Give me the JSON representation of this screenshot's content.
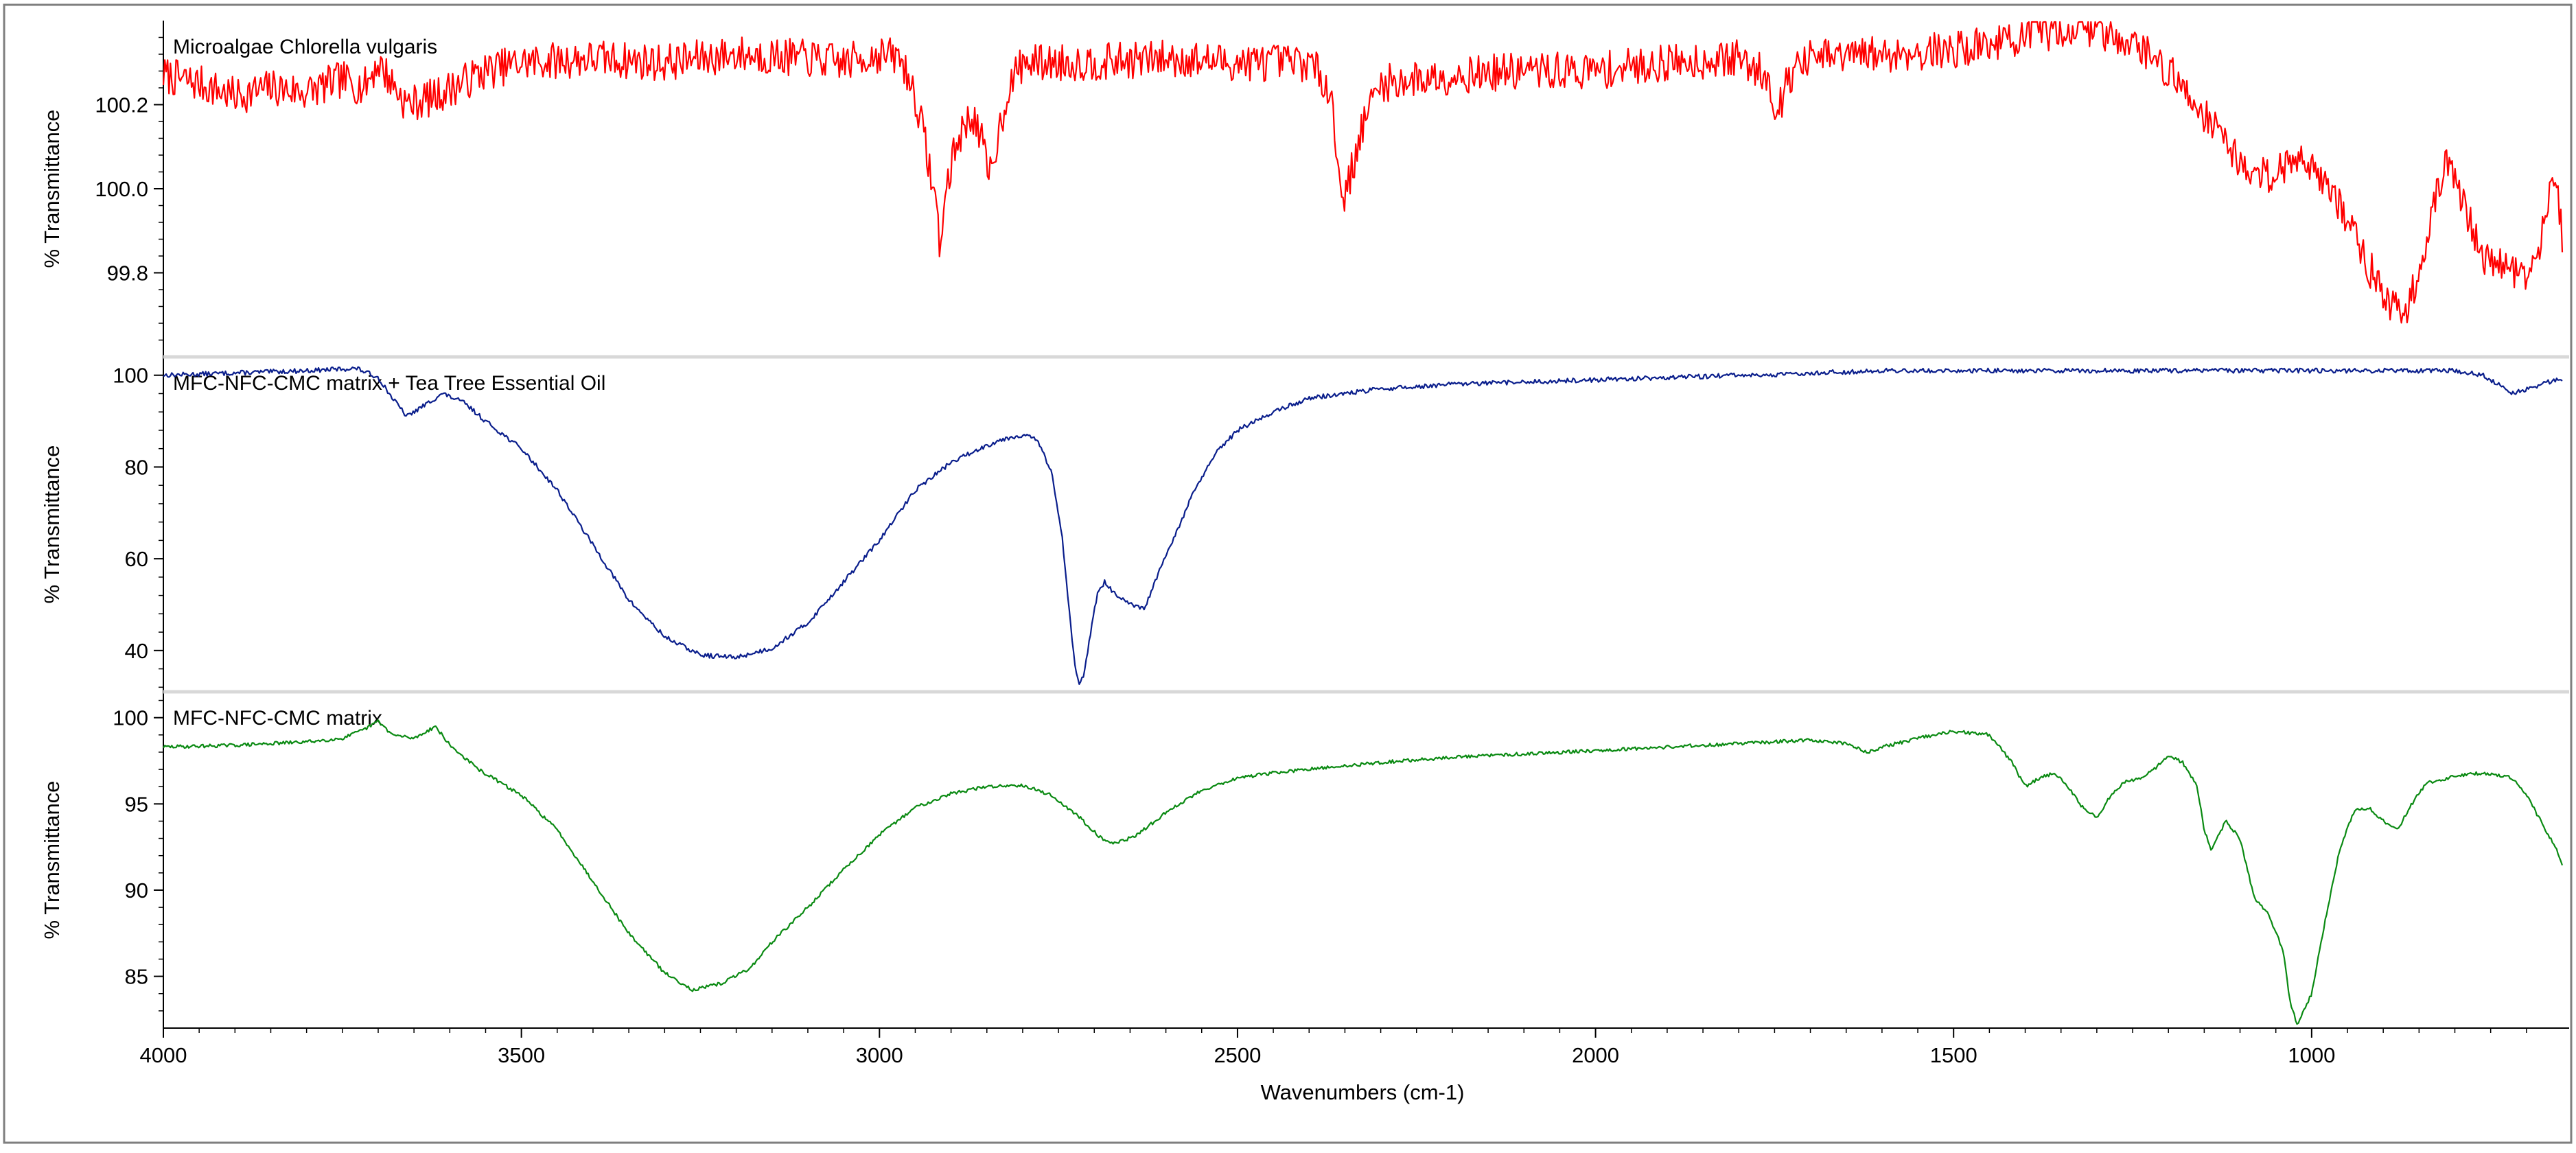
{
  "chart_data": {
    "type": "line",
    "x_axis": {
      "label": "Wavenumbers (cm-1)",
      "range": [
        4000,
        650
      ],
      "ticks": [
        4000,
        3500,
        3000,
        2500,
        2000,
        1500,
        1000
      ],
      "tick_labels": [
        "4000",
        "3500",
        "3000",
        "2500",
        "2000",
        "1500",
        "1000"
      ],
      "reversed": true
    },
    "grid": false,
    "panels": [
      {
        "title": "Microalgae Chlorella vulgaris",
        "ylabel": "% Transmittance",
        "color": "#ff0000",
        "ylim": [
          99.6,
          100.4
        ],
        "yticks": [
          99.8,
          100.0,
          100.2
        ],
        "ytick_labels": [
          "99.8",
          "100.0",
          "100.2"
        ],
        "noise": 0.045,
        "seed": 7,
        "points": [
          [
            4000,
            100.27
          ],
          [
            3950,
            100.25
          ],
          [
            3900,
            100.22
          ],
          [
            3850,
            100.24
          ],
          [
            3800,
            100.23
          ],
          [
            3750,
            100.26
          ],
          [
            3720,
            100.24
          ],
          [
            3700,
            100.3
          ],
          [
            3660,
            100.2
          ],
          [
            3620,
            100.22
          ],
          [
            3550,
            100.28
          ],
          [
            3500,
            100.3
          ],
          [
            3400,
            100.31
          ],
          [
            3300,
            100.3
          ],
          [
            3200,
            100.32
          ],
          [
            3100,
            100.31
          ],
          [
            3050,
            100.3
          ],
          [
            3000,
            100.32
          ],
          [
            2970,
            100.31
          ],
          [
            2950,
            100.22
          ],
          [
            2935,
            100.1
          ],
          [
            2920,
            99.95
          ],
          [
            2915,
            99.86
          ],
          [
            2905,
            100.02
          ],
          [
            2890,
            100.12
          ],
          [
            2870,
            100.18
          ],
          [
            2855,
            100.1
          ],
          [
            2848,
            100.02
          ],
          [
            2835,
            100.12
          ],
          [
            2820,
            100.24
          ],
          [
            2800,
            100.3
          ],
          [
            2700,
            100.3
          ],
          [
            2600,
            100.31
          ],
          [
            2500,
            100.3
          ],
          [
            2400,
            100.3
          ],
          [
            2370,
            100.24
          ],
          [
            2360,
            100.05
          ],
          [
            2350,
            99.98
          ],
          [
            2340,
            100.05
          ],
          [
            2320,
            100.18
          ],
          [
            2300,
            100.25
          ],
          [
            2250,
            100.26
          ],
          [
            2200,
            100.27
          ],
          [
            2100,
            100.28
          ],
          [
            2000,
            100.28
          ],
          [
            1900,
            100.3
          ],
          [
            1800,
            100.31
          ],
          [
            1760,
            100.27
          ],
          [
            1745,
            100.18
          ],
          [
            1730,
            100.27
          ],
          [
            1700,
            100.31
          ],
          [
            1600,
            100.32
          ],
          [
            1500,
            100.33
          ],
          [
            1400,
            100.36
          ],
          [
            1350,
            100.38
          ],
          [
            1300,
            100.38
          ],
          [
            1250,
            100.35
          ],
          [
            1200,
            100.28
          ],
          [
            1150,
            100.18
          ],
          [
            1120,
            100.12
          ],
          [
            1100,
            100.06
          ],
          [
            1080,
            100.03
          ],
          [
            1050,
            100.04
          ],
          [
            1030,
            100.06
          ],
          [
            1010,
            100.08
          ],
          [
            990,
            100.04
          ],
          [
            970,
            99.98
          ],
          [
            950,
            99.93
          ],
          [
            930,
            99.85
          ],
          [
            910,
            99.78
          ],
          [
            890,
            99.72
          ],
          [
            870,
            99.7
          ],
          [
            850,
            99.8
          ],
          [
            830,
            99.97
          ],
          [
            810,
            100.06
          ],
          [
            790,
            99.98
          ],
          [
            770,
            99.87
          ],
          [
            750,
            99.82
          ],
          [
            730,
            99.82
          ],
          [
            710,
            99.8
          ],
          [
            690,
            99.8
          ],
          [
            680,
            99.86
          ],
          [
            670,
            99.98
          ],
          [
            660,
            100.05
          ],
          [
            650,
            99.88
          ]
        ]
      },
      {
        "title": "MFC-NFC-CMC matrix + Tea Tree Essential Oil",
        "ylabel": "% Transmittance",
        "color": "#0a1e8c",
        "ylim": [
          31,
          104
        ],
        "yticks": [
          40,
          60,
          80,
          100
        ],
        "ytick_labels": [
          "40",
          "60",
          "80",
          "100"
        ],
        "noise": 0.5,
        "seed": 13,
        "points": [
          [
            4000,
            100
          ],
          [
            3900,
            100.5
          ],
          [
            3800,
            101
          ],
          [
            3730,
            101.5
          ],
          [
            3700,
            99.5
          ],
          [
            3680,
            95
          ],
          [
            3660,
            91
          ],
          [
            3630,
            94
          ],
          [
            3610,
            96
          ],
          [
            3580,
            94
          ],
          [
            3550,
            90
          ],
          [
            3500,
            84
          ],
          [
            3450,
            75
          ],
          [
            3400,
            63
          ],
          [
            3350,
            51
          ],
          [
            3300,
            43
          ],
          [
            3250,
            39
          ],
          [
            3200,
            38.5
          ],
          [
            3150,
            40.5
          ],
          [
            3100,
            46
          ],
          [
            3050,
            55
          ],
          [
            3000,
            64
          ],
          [
            2950,
            75
          ],
          [
            2900,
            81
          ],
          [
            2860,
            84
          ],
          [
            2830,
            86
          ],
          [
            2800,
            87
          ],
          [
            2780,
            86
          ],
          [
            2760,
            79
          ],
          [
            2745,
            65
          ],
          [
            2735,
            49
          ],
          [
            2728,
            38
          ],
          [
            2722,
            33
          ],
          [
            2715,
            34
          ],
          [
            2705,
            44
          ],
          [
            2695,
            53
          ],
          [
            2685,
            55
          ],
          [
            2670,
            52
          ],
          [
            2650,
            50
          ],
          [
            2630,
            49
          ],
          [
            2610,
            57
          ],
          [
            2590,
            64
          ],
          [
            2560,
            75
          ],
          [
            2530,
            83
          ],
          [
            2500,
            88
          ],
          [
            2450,
            92
          ],
          [
            2400,
            95
          ],
          [
            2300,
            97
          ],
          [
            2200,
            98
          ],
          [
            2000,
            99
          ],
          [
            1900,
            99.5
          ],
          [
            1800,
            100
          ],
          [
            1750,
            100
          ],
          [
            1700,
            100.5
          ],
          [
            1600,
            101
          ],
          [
            1500,
            101
          ],
          [
            1400,
            101
          ],
          [
            1300,
            101
          ],
          [
            1200,
            101
          ],
          [
            1100,
            101
          ],
          [
            1000,
            101
          ],
          [
            900,
            101
          ],
          [
            800,
            101
          ],
          [
            760,
            100
          ],
          [
            740,
            98
          ],
          [
            720,
            96
          ],
          [
            700,
            97
          ],
          [
            680,
            98
          ],
          [
            660,
            99
          ],
          [
            650,
            99
          ]
        ]
      },
      {
        "title": "MFC-NFC-CMC matrix",
        "ylabel": "% Transmittance",
        "color": "#0a8a12",
        "ylim": [
          82,
          101.5
        ],
        "yticks": [
          85,
          90,
          95,
          100
        ],
        "ytick_labels": [
          "85",
          "90",
          "95",
          "100"
        ],
        "noise": 0.1,
        "seed": 29,
        "points": [
          [
            4000,
            98.3
          ],
          [
            3900,
            98.4
          ],
          [
            3800,
            98.6
          ],
          [
            3750,
            98.8
          ],
          [
            3720,
            99.3
          ],
          [
            3700,
            99.8
          ],
          [
            3680,
            99.0
          ],
          [
            3650,
            98.8
          ],
          [
            3620,
            99.5
          ],
          [
            3600,
            98.4
          ],
          [
            3560,
            97.0
          ],
          [
            3500,
            95.5
          ],
          [
            3450,
            93.5
          ],
          [
            3400,
            90.5
          ],
          [
            3350,
            87.5
          ],
          [
            3300,
            85.2
          ],
          [
            3260,
            84.2
          ],
          [
            3220,
            84.6
          ],
          [
            3180,
            85.5
          ],
          [
            3150,
            87.0
          ],
          [
            3100,
            89.0
          ],
          [
            3050,
            91.2
          ],
          [
            3000,
            93.2
          ],
          [
            2950,
            94.8
          ],
          [
            2900,
            95.6
          ],
          [
            2850,
            96.0
          ],
          [
            2800,
            96.1
          ],
          [
            2760,
            95.5
          ],
          [
            2720,
            94.2
          ],
          [
            2690,
            93.0
          ],
          [
            2670,
            92.7
          ],
          [
            2640,
            93.2
          ],
          [
            2600,
            94.5
          ],
          [
            2550,
            95.8
          ],
          [
            2500,
            96.5
          ],
          [
            2450,
            96.8
          ],
          [
            2400,
            97.0
          ],
          [
            2300,
            97.4
          ],
          [
            2200,
            97.7
          ],
          [
            2100,
            97.9
          ],
          [
            2000,
            98.1
          ],
          [
            1900,
            98.3
          ],
          [
            1800,
            98.5
          ],
          [
            1700,
            98.7
          ],
          [
            1650,
            98.5
          ],
          [
            1620,
            98.0
          ],
          [
            1600,
            98.3
          ],
          [
            1550,
            98.8
          ],
          [
            1500,
            99.2
          ],
          [
            1450,
            99.0
          ],
          [
            1420,
            97.5
          ],
          [
            1400,
            96.0
          ],
          [
            1380,
            96.5
          ],
          [
            1360,
            96.8
          ],
          [
            1340,
            96.0
          ],
          [
            1320,
            94.8
          ],
          [
            1300,
            94.2
          ],
          [
            1280,
            95.5
          ],
          [
            1260,
            96.3
          ],
          [
            1240,
            96.5
          ],
          [
            1220,
            97.0
          ],
          [
            1200,
            97.8
          ],
          [
            1180,
            97.4
          ],
          [
            1160,
            96.0
          ],
          [
            1150,
            93.5
          ],
          [
            1140,
            92.3
          ],
          [
            1120,
            94.0
          ],
          [
            1100,
            93.0
          ],
          [
            1080,
            89.5
          ],
          [
            1060,
            88.6
          ],
          [
            1040,
            86.5
          ],
          [
            1030,
            83.5
          ],
          [
            1020,
            82.2
          ],
          [
            1000,
            84.0
          ],
          [
            980,
            88.5
          ],
          [
            960,
            92.5
          ],
          [
            940,
            94.6
          ],
          [
            920,
            94.8
          ],
          [
            900,
            94.0
          ],
          [
            880,
            93.5
          ],
          [
            860,
            95.0
          ],
          [
            840,
            96.2
          ],
          [
            800,
            96.6
          ],
          [
            760,
            96.8
          ],
          [
            720,
            96.5
          ],
          [
            700,
            95.5
          ],
          [
            680,
            94.0
          ],
          [
            660,
            92.5
          ],
          [
            650,
            91.5
          ]
        ]
      }
    ]
  }
}
